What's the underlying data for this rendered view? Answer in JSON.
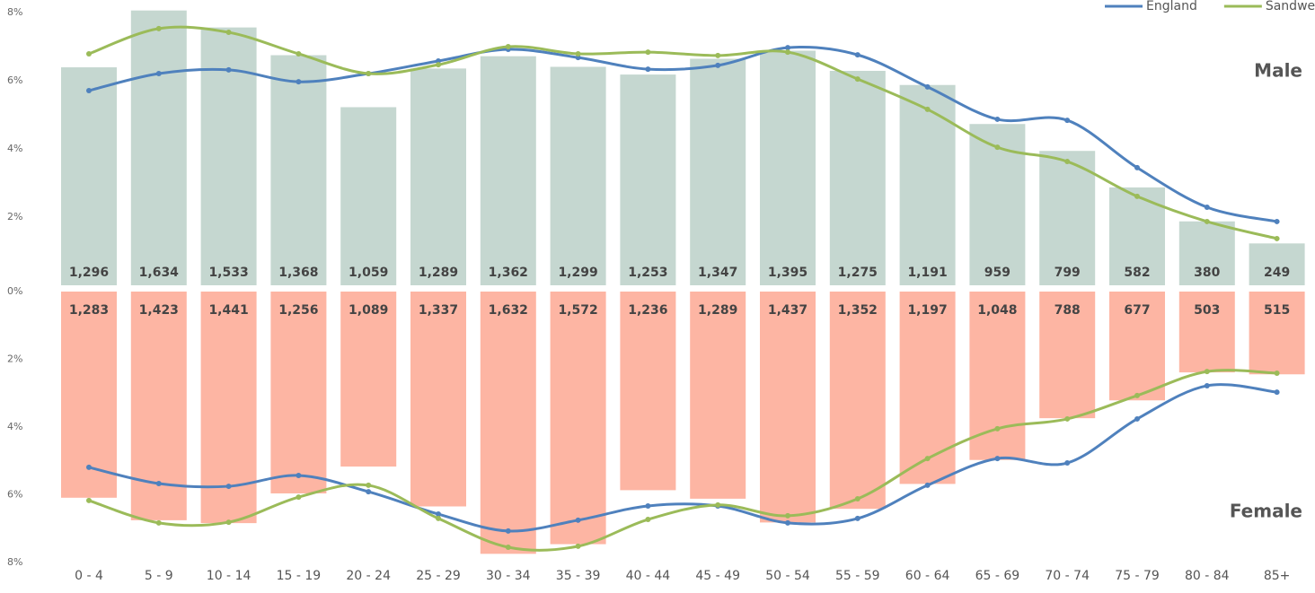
{
  "chart_data": [
    {
      "type": "bar",
      "label": "Male",
      "ylim": [
        0,
        8
      ],
      "yticks": [
        {
          "value": 0,
          "label": "0%"
        },
        {
          "value": 2,
          "label": "2%"
        },
        {
          "value": 4,
          "label": "4%"
        },
        {
          "value": 6,
          "label": "6%"
        },
        {
          "value": 8,
          "label": "8%"
        }
      ],
      "legend": "upper right",
      "bars": {
        "color": "#c5d7d0",
        "values": [
          1296,
          1634,
          1533,
          1368,
          1059,
          1289,
          1362,
          1299,
          1253,
          1347,
          1395,
          1275,
          1191,
          959,
          799,
          582,
          380,
          249
        ],
        "value_labels": [
          "1,296",
          "1,634",
          "1,533",
          "1,368",
          "1,059",
          "1,289",
          "1,362",
          "1,299",
          "1,253",
          "1,347",
          "1,395",
          "1,275",
          "1,191",
          "959",
          "799",
          "582",
          "380",
          "249"
        ]
      },
      "series": [
        {
          "name": "England",
          "color": "#4f81bd",
          "values": [
            5.71,
            6.21,
            6.32,
            5.97,
            6.21,
            6.58,
            6.92,
            6.68,
            6.34,
            6.45,
            6.97,
            6.76,
            5.82,
            4.87,
            4.84,
            3.45,
            2.29,
            1.87
          ]
        },
        {
          "name": "Sandwell",
          "color": "#9bbb59",
          "values": [
            6.79,
            7.53,
            7.42,
            6.79,
            6.21,
            6.47,
            7.0,
            6.79,
            6.84,
            6.74,
            6.84,
            6.05,
            5.16,
            4.05,
            3.63,
            2.61,
            1.87,
            1.37
          ]
        }
      ]
    },
    {
      "type": "bar",
      "label": "Female",
      "ylim": [
        0,
        8
      ],
      "inverted": true,
      "yticks": [
        {
          "value": 2,
          "label": "2%"
        },
        {
          "value": 4,
          "label": "4%"
        },
        {
          "value": 6,
          "label": "6%"
        },
        {
          "value": 8,
          "label": "8%"
        }
      ],
      "categories": [
        "0 - 4",
        "5 - 9",
        "10 - 14",
        "15 - 19",
        "20 - 24",
        "25 - 29",
        "30 - 34",
        "35 - 39",
        "40 - 44",
        "45 - 49",
        "50 - 54",
        "55 - 59",
        "60 - 64",
        "65 - 69",
        "70 - 74",
        "75 - 79",
        "80 - 84",
        "85+"
      ],
      "bars": {
        "color": "#fdb5a3",
        "values": [
          1283,
          1423,
          1441,
          1256,
          1089,
          1337,
          1632,
          1572,
          1236,
          1289,
          1437,
          1352,
          1197,
          1048,
          788,
          677,
          503,
          515
        ],
        "value_labels": [
          "1,283",
          "1,423",
          "1,441",
          "1,256",
          "1,089",
          "1,337",
          "1,632",
          "1,572",
          "1,236",
          "1,289",
          "1,437",
          "1,352",
          "1,197",
          "1,048",
          "788",
          "677",
          "503",
          "515"
        ]
      },
      "series": [
        {
          "color": "#4f81bd",
          "values": [
            5.19,
            5.67,
            5.75,
            5.43,
            5.91,
            6.57,
            7.07,
            6.75,
            6.33,
            6.33,
            6.83,
            6.7,
            5.72,
            4.93,
            5.06,
            3.76,
            2.78,
            2.97
          ]
        },
        {
          "color": "#9bbb59",
          "values": [
            6.17,
            6.83,
            6.81,
            6.07,
            5.72,
            6.7,
            7.55,
            7.52,
            6.73,
            6.3,
            6.62,
            6.12,
            4.93,
            4.05,
            3.76,
            3.07,
            2.36,
            2.41
          ]
        }
      ]
    }
  ]
}
